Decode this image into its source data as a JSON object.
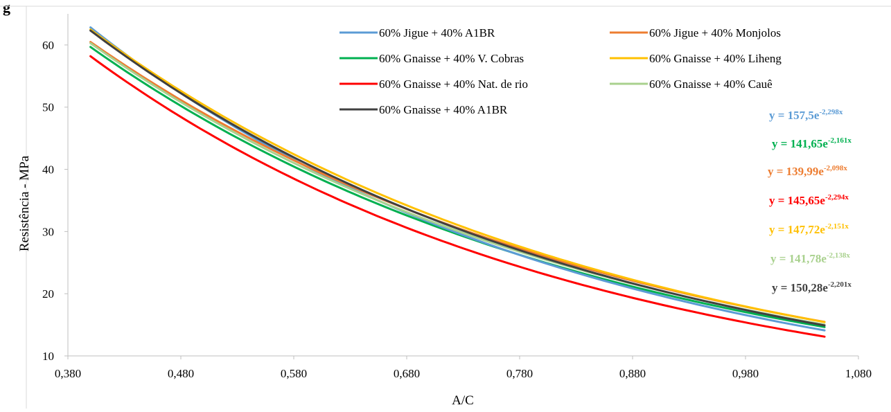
{
  "corner_fragment": "g",
  "chart_data": {
    "type": "line",
    "title": "",
    "xlabel": "A/C",
    "ylabel": "Resistência - MPa",
    "xlim": [
      0.38,
      1.08
    ],
    "ylim": [
      10,
      65
    ],
    "x_ticks": [
      "0,380",
      "0,480",
      "0,580",
      "0,680",
      "0,780",
      "0,880",
      "0,980",
      "1,080"
    ],
    "y_ticks": [
      "10",
      "20",
      "30",
      "40",
      "50",
      "60"
    ],
    "x_tick_values": [
      0.38,
      0.48,
      0.58,
      0.68,
      0.78,
      0.88,
      0.98,
      1.08
    ],
    "y_tick_values": [
      10,
      20,
      30,
      40,
      50,
      60
    ],
    "x_range": [
      0.4,
      1.05
    ],
    "grid": false,
    "legend_position": "top",
    "series": [
      {
        "name": "60% Jigue + 40% A1BR",
        "color": "#5B9BD5",
        "a": 157.5,
        "b": 2.298,
        "x": [
          0.4,
          0.5,
          0.6,
          0.7,
          0.8,
          0.9,
          1.0,
          1.05
        ],
        "y": [
          62.9,
          49.9,
          39.6,
          31.5,
          25.0,
          19.8,
          15.8,
          14.1
        ]
      },
      {
        "name": "60% Jigue + 40% Monjolos",
        "color": "#ED7D31",
        "a": 139.99,
        "b": 2.098,
        "x": [
          0.4,
          0.5,
          0.6,
          0.7,
          0.8,
          0.9,
          1.0,
          1.05
        ],
        "y": [
          60.4,
          49.1,
          39.8,
          32.3,
          26.2,
          21.3,
          17.2,
          15.5
        ]
      },
      {
        "name": "60% Gnaisse + 40% V. Cobras",
        "color": "#00B050",
        "a": 141.65,
        "b": 2.161,
        "x": [
          0.4,
          0.5,
          0.6,
          0.7,
          0.8,
          0.9,
          1.0,
          1.05
        ],
        "y": [
          59.7,
          48.0,
          38.6,
          31.1,
          25.0,
          20.1,
          16.3,
          14.6
        ]
      },
      {
        "name": "60% Gnaisse + 40% Liheng",
        "color": "#FFC000",
        "a": 147.72,
        "b": 2.151,
        "x": [
          0.4,
          0.5,
          0.6,
          0.7,
          0.8,
          0.9,
          1.0,
          1.05
        ],
        "y": [
          62.5,
          50.4,
          40.5,
          32.6,
          26.3,
          21.2,
          17.1,
          15.3
        ]
      },
      {
        "name": "60% Gnaisse + 40% Nat. de rio",
        "color": "#FF0000",
        "a": 145.65,
        "b": 2.294,
        "x": [
          0.4,
          0.5,
          0.6,
          0.7,
          0.8,
          0.9,
          1.0,
          1.05
        ],
        "y": [
          58.2,
          46.1,
          36.7,
          29.2,
          23.2,
          18.4,
          14.6,
          13.1
        ]
      },
      {
        "name": "60% Gnaisse + 40% Cauê",
        "color": "#A9D18E",
        "a": 141.78,
        "b": 2.138,
        "x": [
          0.4,
          0.5,
          0.6,
          0.7,
          0.8,
          0.9,
          1.0,
          1.05
        ],
        "y": [
          60.3,
          48.6,
          39.2,
          31.6,
          25.5,
          20.6,
          16.7,
          14.9
        ]
      },
      {
        "name": "60% Gnaisse + 40% A1BR",
        "color": "#404040",
        "a": 150.28,
        "b": 2.201,
        "x": [
          0.4,
          0.5,
          0.6,
          0.7,
          0.8,
          0.9,
          1.0,
          1.05
        ],
        "y": [
          62.4,
          50.0,
          40.1,
          32.1,
          25.8,
          20.7,
          16.6,
          14.8
        ]
      }
    ],
    "equations": [
      {
        "coef": "y = 157,5e",
        "exp": "-2,298x",
        "color": "#5B9BD5"
      },
      {
        "coef": "y = 141,65e",
        "exp": "-2,161x",
        "color": "#00B050"
      },
      {
        "coef": "y = 139,99e",
        "exp": "-2,098x",
        "color": "#ED7D31"
      },
      {
        "coef": "y = 145,65e",
        "exp": "-2,294x",
        "color": "#FF0000"
      },
      {
        "coef": "y = 147,72e",
        "exp": "-2,151x",
        "color": "#FFC000"
      },
      {
        "coef": "y = 141,78e",
        "exp": "-2,138x",
        "color": "#A9D18E"
      },
      {
        "coef": "y = 150,28e",
        "exp": "-2,201x",
        "color": "#404040"
      }
    ]
  }
}
